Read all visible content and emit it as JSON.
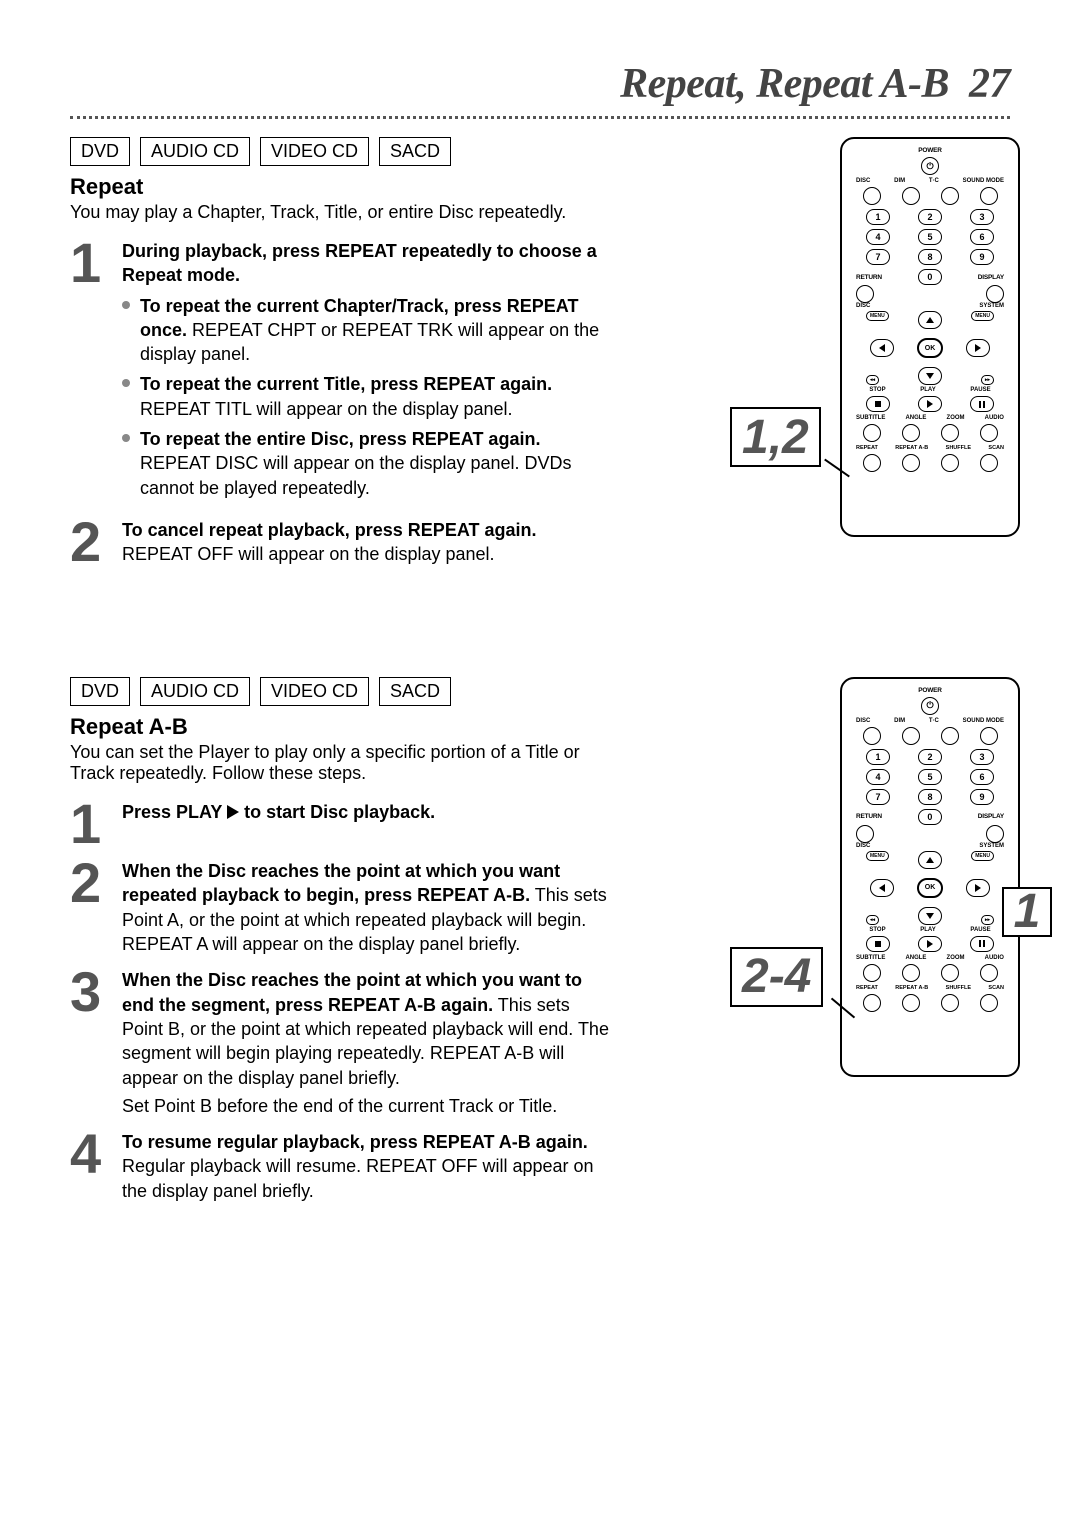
{
  "page": {
    "title": "Repeat, Repeat A-B",
    "page_number": "27"
  },
  "section1": {
    "tags": [
      "DVD",
      "AUDIO CD",
      "VIDEO CD",
      "SACD"
    ],
    "heading": "Repeat",
    "intro": "You may play a Chapter, Track, Title, or entire Disc repeatedly.",
    "steps": [
      {
        "num": "1",
        "lead_bold": "During playback, press REPEAT repeatedly to choose a Repeat mode.",
        "lead_rest": "",
        "subs": [
          {
            "bold": "To repeat the current Chapter/Track, press REPEAT once.",
            "rest": " REPEAT CHPT or REPEAT TRK will appear on the display panel."
          },
          {
            "bold": "To repeat the current Title, press REPEAT again.",
            "rest": " REPEAT TITL will appear on the display panel."
          },
          {
            "bold": "To repeat the entire Disc, press REPEAT again.",
            "rest": " REPEAT DISC will appear on the display panel. DVDs cannot be played repeatedly."
          }
        ]
      },
      {
        "num": "2",
        "lead_bold": "To cancel repeat playback, press REPEAT again.",
        "lead_rest": " REPEAT OFF will appear on the display panel.",
        "subs": []
      }
    ],
    "callout": "1,2"
  },
  "section2": {
    "tags": [
      "DVD",
      "AUDIO CD",
      "VIDEO CD",
      "SACD"
    ],
    "heading": "Repeat A-B",
    "intro": "You can set the Player to play only a specific portion of a Title or Track repeatedly. Follow these steps.",
    "steps": [
      {
        "num": "1",
        "lead_bold_pre": "Press PLAY ",
        "lead_bold_post": " to start Disc playback.",
        "has_play_icon": true,
        "lead_rest": "",
        "subs": []
      },
      {
        "num": "2",
        "lead_bold": "When the Disc reaches the point at which you want repeated playback to begin, press REPEAT A-B.",
        "lead_rest": " This sets Point A, or the point at which repeated playback will begin. REPEAT A will appear on the display panel briefly.",
        "subs": []
      },
      {
        "num": "3",
        "lead_bold": "When the Disc reaches the point at which you want to end the segment, press REPEAT A-B again.",
        "lead_rest": " This sets Point B, or the point at which repeated playback will end. The segment will begin playing repeatedly. REPEAT A-B will appear on the display panel briefly.",
        "trailing": "Set Point B before the end of the current Track or Title.",
        "subs": []
      },
      {
        "num": "4",
        "lead_bold": "To resume regular playback, press REPEAT A-B again.",
        "lead_rest": " Regular playback will resume. REPEAT OFF will appear on the display panel briefly.",
        "subs": []
      }
    ],
    "callout1": "1",
    "callout2": "2-4"
  },
  "remote": {
    "power": "POWER",
    "row1_labels": [
      "DISC",
      "DIM",
      "T·C",
      "SOUND MODE"
    ],
    "numpad": [
      [
        "1",
        "2",
        "3"
      ],
      [
        "4",
        "5",
        "6"
      ],
      [
        "7",
        "8",
        "9"
      ]
    ],
    "zero": "0",
    "return": "RETURN",
    "display": "DISPLAY",
    "disc": "DISC",
    "system": "SYSTEM",
    "menu": "MENU",
    "ok": "OK",
    "transport_labels": [
      "STOP",
      "PLAY",
      "PAUSE"
    ],
    "row_labels_1": [
      "SUBTITLE",
      "ANGLE",
      "ZOOM",
      "AUDIO"
    ],
    "row_labels_2": [
      "REPEAT",
      "REPEAT A-B",
      "SHUFFLE",
      "SCAN"
    ]
  }
}
